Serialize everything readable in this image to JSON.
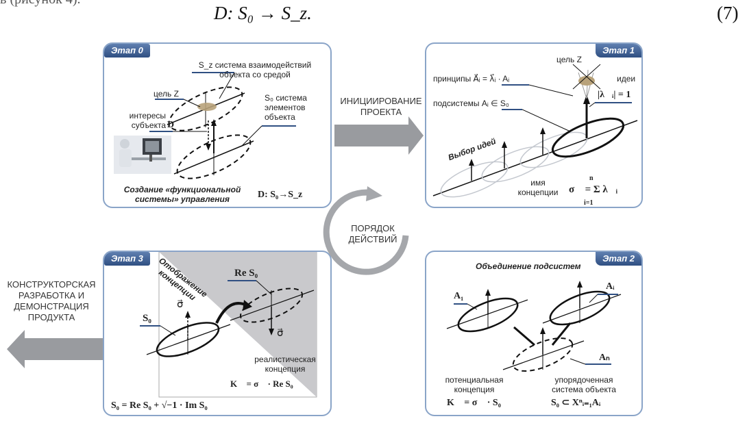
{
  "top": {
    "prefix": "в (рисунок 4).",
    "formula": "D: S₀ → S_z.",
    "number": "(7)"
  },
  "stage0": {
    "tab": "Этап 0",
    "sz_label": "S_z система взаимодействий объекта со средой",
    "goal": "цель Z",
    "interests": "интересы субъекта",
    "d": "D",
    "s0_label": "S₀ система элементов объекта",
    "caption": "Создание «функциональной системы» управления",
    "formula": "D: S₀→S_z"
  },
  "stage1": {
    "tab": "Этап 1",
    "goal": "цель Z",
    "principles": "принципы A⃗ᵢ = λ⃗ᵢ · Aᵢ",
    "ideas": "идеи",
    "norm": "|λ⃗ᵢ| = 1",
    "subsystems": "подсистемы Aᵢ ∈ S₀",
    "choice": "Выбор идей",
    "concept_name": "имя концепции",
    "sum_formula": "σ⃗ = Σ λ⃗ᵢ",
    "sum_top": "n",
    "sum_bottom": "i=1"
  },
  "stage2": {
    "tab": "Этап 2",
    "title": "Объединение подсистем",
    "a1": "A₁",
    "ai": "Aᵢ",
    "an": "Aₙ",
    "potential": "потенциальная концепция",
    "ordered": "упорядоченная система объекта",
    "k_formula": "K⃗ = σ⃗ · S₀",
    "s0_formula": "S₀ ⊂ Xⁿᵢ₌₁Aᵢ"
  },
  "stage3": {
    "tab": "Этап 3",
    "mapping": "Отображение концепции",
    "re_s0": "Re S₀",
    "s0": "S₀",
    "sigma": "σ⃗",
    "realistic": "реалистическая концепция",
    "k_formula": "K⃗ = σ⃗ · Re S₀",
    "bottom_formula": "S₀ = Re S₀ + √−1 · Im S₀"
  },
  "flow": {
    "initiation": "ИНИЦИИРОВАНИЕ ПРОЕКТА",
    "order": "ПОРЯДОК ДЕЙСТВИЙ",
    "design": "КОНСТРУКТОРСКАЯ РАЗРАБОТКА И ДЕМОНСТРАЦИЯ ПРОДУКТА"
  }
}
